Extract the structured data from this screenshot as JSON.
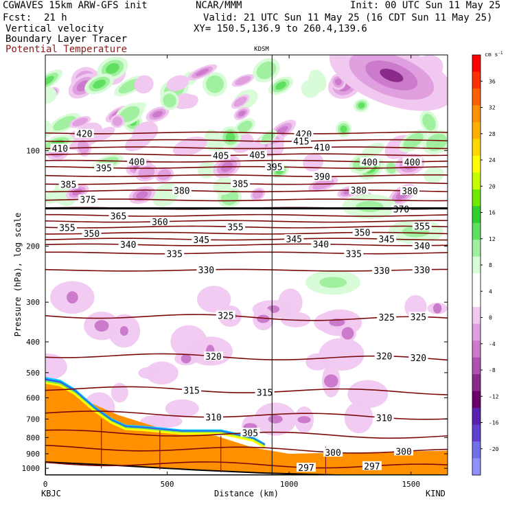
{
  "header": {
    "model": "CGWAVES 15km ARW-GFS init",
    "org": "NCAR/MMM",
    "init": "Init: 00 UTC Sun 11 May 25",
    "fcst_label": "Fcst:",
    "fcst_value": "21 h",
    "valid": "Valid: 21 UTC Sun 11 May 25 (16 CDT Sun 11 May 25)",
    "field1": "Vertical velocity",
    "field2": "Boundary Layer Tracer",
    "field3": "Potential Temperature",
    "xy": "XY= 150.5,136.9 to 260.4,139.6"
  },
  "plot": {
    "station_top": "KDSM",
    "left_station": "KBJC",
    "right_station": "KIND"
  },
  "chart_data": {
    "type": "heatmap",
    "xlabel": "Distance (km)",
    "ylabel": "Pressure (hPa), log scale",
    "xlim": [
      0,
      1650
    ],
    "ylim": [
      1050,
      50
    ],
    "y_scale": "log",
    "x_ticks": [
      "0",
      "500",
      "1000",
      "1500"
    ],
    "x_tick_values": [
      0,
      500,
      1000,
      1500
    ],
    "y_ticks": [
      "100",
      "200",
      "300",
      "400",
      "500",
      "600",
      "700",
      "800",
      "900",
      "1000"
    ],
    "y_tick_values": [
      100,
      200,
      300,
      400,
      500,
      600,
      700,
      800,
      900,
      1000
    ],
    "station_marker_x_km": 930,
    "colorbar": {
      "unit": "cm s",
      "unit_exp": "-1",
      "tick_labels": [
        "36",
        "32",
        "28",
        "24",
        "20",
        "16",
        "12",
        "8",
        "4",
        "0",
        "-4",
        "-8",
        "-12",
        "-16",
        "-20"
      ],
      "tick_values": [
        36,
        32,
        28,
        24,
        20,
        16,
        12,
        8,
        4,
        0,
        -4,
        -8,
        -12,
        -16,
        -20
      ],
      "colors": [
        "#ff0000",
        "#ff3000",
        "#ff6000",
        "#ff9000",
        "#ffb000",
        "#ffd800",
        "#ffff00",
        "#c8ff00",
        "#70e800",
        "#30d030",
        "#60e060",
        "#a0f0a0",
        "#d8fcd8",
        "#ffffff",
        "#ffffff",
        "#f0c8f0",
        "#e0a0e0",
        "#cc7acc",
        "#b050b0",
        "#8a2a8a",
        "#6a006a",
        "#5a20b0",
        "#6040d0",
        "#7070e8",
        "#9090ff"
      ]
    },
    "theta_contours": [
      {
        "value": 420,
        "p": 88,
        "label_x": [
          160,
          1060
        ]
      },
      {
        "value": 415,
        "p": 93,
        "label_x": [
          1050
        ]
      },
      {
        "value": 410,
        "p": 98,
        "label_x": [
          60,
          1135
        ]
      },
      {
        "value": 405,
        "p": 103,
        "label_x": [
          720,
          870
        ]
      },
      {
        "value": 400,
        "p": 108,
        "label_x": [
          375,
          1330,
          1505
        ]
      },
      {
        "value": 395,
        "p": 113,
        "label_x": [
          240,
          940
        ]
      },
      {
        "value": 390,
        "p": 120,
        "label_x": [
          1135
        ]
      },
      {
        "value": 385,
        "p": 127,
        "label_x": [
          95,
          800
        ]
      },
      {
        "value": 380,
        "p": 134,
        "label_x": [
          560,
          1285,
          1495
        ]
      },
      {
        "value": 375,
        "p": 143,
        "label_x": [
          175
        ]
      },
      {
        "value": 370,
        "p": 152,
        "label_x": [
          1460
        ]
      },
      {
        "value": 365,
        "p": 160,
        "label_x": [
          300
        ]
      },
      {
        "value": 360,
        "p": 167,
        "label_x": [
          470
        ]
      },
      {
        "value": 355,
        "p": 174,
        "label_x": [
          90,
          780,
          1545
        ]
      },
      {
        "value": 350,
        "p": 182,
        "label_x": [
          190,
          1300
        ]
      },
      {
        "value": 345,
        "p": 190,
        "label_x": [
          640,
          1020,
          1400
        ]
      },
      {
        "value": 340,
        "p": 198,
        "label_x": [
          340,
          1130,
          1545
        ]
      },
      {
        "value": 335,
        "p": 210,
        "label_x": [
          530,
          1265
        ]
      },
      {
        "value": 330,
        "p": 238,
        "label_x": [
          660,
          1380,
          1545
        ]
      },
      {
        "value": 325,
        "p": 330,
        "label_x": [
          740,
          1400,
          1530
        ]
      },
      {
        "value": 320,
        "p": 440,
        "label_x": [
          690,
          1390,
          1530
        ]
      },
      {
        "value": 315,
        "p": 560,
        "label_x": [
          600,
          900
        ]
      },
      {
        "value": 310,
        "p": 670,
        "label_x": [
          690,
          1390
        ]
      },
      {
        "value": 305,
        "p": 770,
        "label_x": [
          840
        ]
      },
      {
        "value": 300,
        "p": 860,
        "label_x": [
          1180,
          1470
        ]
      },
      {
        "value": 297,
        "p": 960,
        "label_x": [
          1070,
          1340
        ]
      }
    ]
  }
}
